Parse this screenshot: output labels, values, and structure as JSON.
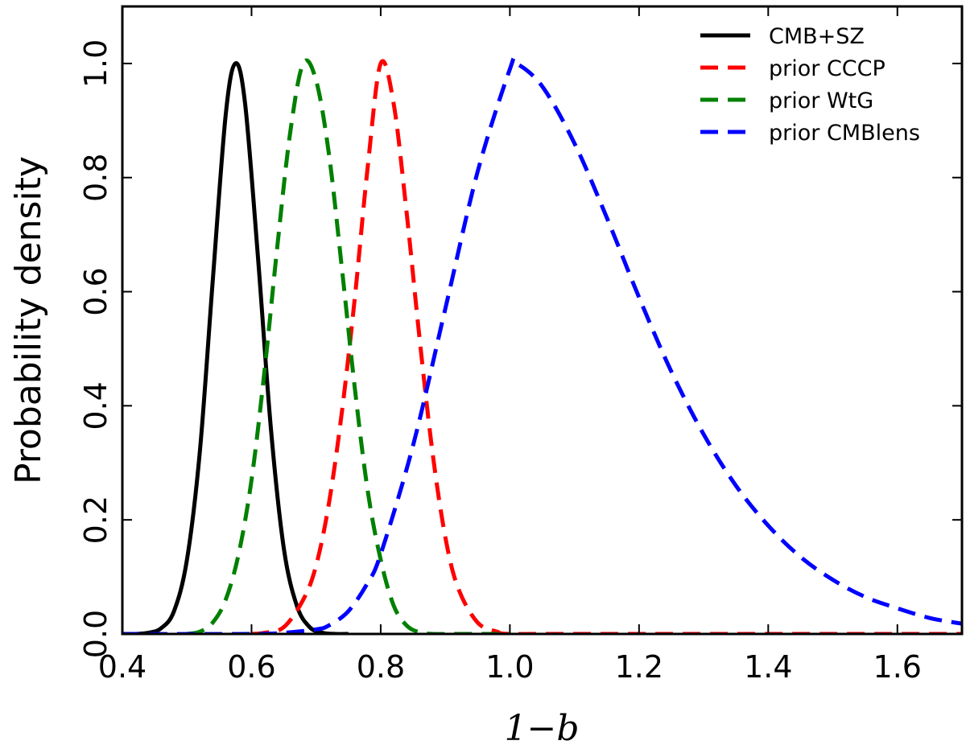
{
  "chart_data": {
    "type": "line",
    "title": "",
    "xlabel": "1−b",
    "ylabel": "Probability density",
    "xlim": [
      0.4,
      1.7
    ],
    "ylim": [
      0.0,
      1.1
    ],
    "x_ticks": [
      0.4,
      0.6,
      0.8,
      1.0,
      1.2,
      1.4,
      1.6
    ],
    "x_tick_labels": [
      "0.4",
      "0.6",
      "0.8",
      "1.0",
      "1.2",
      "1.4",
      "1.6"
    ],
    "y_ticks": [
      0.0,
      0.2,
      0.4,
      0.6,
      0.8,
      1.0
    ],
    "y_tick_labels": [
      "0.0",
      "0.2",
      "0.4",
      "0.6",
      "0.8",
      "1.0"
    ],
    "grid": false,
    "legend_position": "top-right",
    "series": [
      {
        "name": "CMB+SZ",
        "color": "#000000",
        "style": "solid",
        "x": [
          0.4,
          0.42,
          0.44,
          0.46,
          0.48,
          0.5,
          0.52,
          0.54,
          0.56,
          0.575,
          0.59,
          0.61,
          0.63,
          0.65,
          0.67,
          0.69,
          0.71,
          0.73,
          0.75
        ],
        "y": [
          0.0,
          0.0,
          0.002,
          0.01,
          0.04,
          0.13,
          0.32,
          0.62,
          0.91,
          1.0,
          0.93,
          0.66,
          0.36,
          0.15,
          0.05,
          0.012,
          0.002,
          0.0,
          0.0
        ]
      },
      {
        "name": "prior CCCP",
        "color": "#ff0000",
        "style": "dashed",
        "x": [
          0.6,
          0.62,
          0.65,
          0.68,
          0.7,
          0.72,
          0.74,
          0.76,
          0.78,
          0.8,
          0.82,
          0.84,
          0.86,
          0.88,
          0.9,
          0.92,
          0.95,
          0.98,
          1.0,
          1.1,
          1.7
        ],
        "y": [
          0.0,
          0.002,
          0.012,
          0.06,
          0.12,
          0.23,
          0.39,
          0.59,
          0.82,
          1.0,
          0.93,
          0.74,
          0.52,
          0.32,
          0.17,
          0.08,
          0.02,
          0.004,
          0.0,
          0.0,
          0.0
        ]
      },
      {
        "name": "prior WtG",
        "color": "#008000",
        "style": "dashed",
        "x": [
          0.5,
          0.52,
          0.54,
          0.56,
          0.58,
          0.6,
          0.62,
          0.64,
          0.66,
          0.68,
          0.7,
          0.72,
          0.74,
          0.76,
          0.78,
          0.8,
          0.82,
          0.84,
          0.86,
          0.88,
          0.92,
          1.0
        ],
        "y": [
          0.0,
          0.004,
          0.02,
          0.06,
          0.14,
          0.27,
          0.46,
          0.68,
          0.88,
          1.0,
          0.97,
          0.84,
          0.64,
          0.43,
          0.25,
          0.13,
          0.05,
          0.015,
          0.003,
          0.0,
          0.0,
          0.0
        ]
      },
      {
        "name": "prior CMBlens",
        "color": "#0000ff",
        "style": "dashed",
        "x": [
          0.4,
          0.6,
          0.65,
          0.7,
          0.72,
          0.75,
          0.78,
          0.8,
          0.85,
          0.9,
          0.95,
          1.0,
          1.01,
          1.05,
          1.1,
          1.15,
          1.2,
          1.25,
          1.3,
          1.35,
          1.4,
          1.45,
          1.5,
          1.55,
          1.6,
          1.65,
          1.7
        ],
        "y": [
          0.0,
          0.0,
          0.002,
          0.008,
          0.015,
          0.04,
          0.09,
          0.14,
          0.33,
          0.57,
          0.81,
          0.99,
          1.0,
          0.96,
          0.86,
          0.73,
          0.59,
          0.46,
          0.35,
          0.26,
          0.19,
          0.135,
          0.095,
          0.065,
          0.045,
          0.028,
          0.018
        ]
      }
    ]
  }
}
